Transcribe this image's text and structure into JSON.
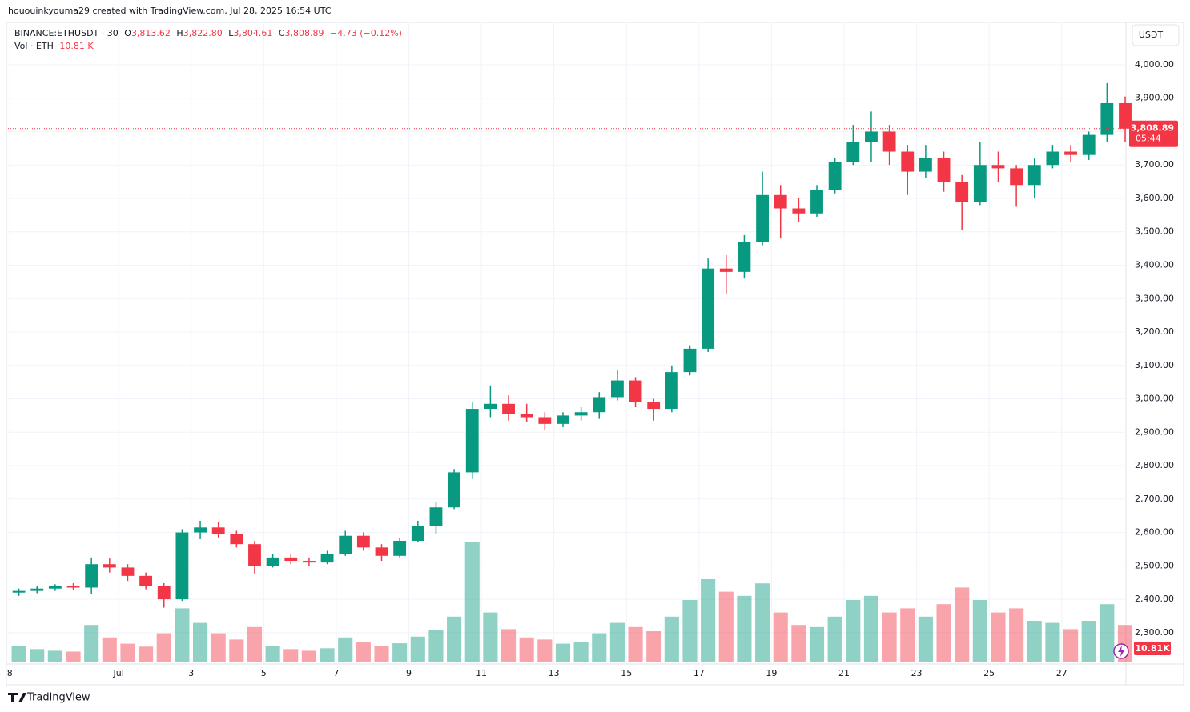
{
  "header": "hououinkyouma29 created with TradingView.com, Jul 28, 2025 16:54 UTC",
  "legend": {
    "symbol": "BINANCE:ETHUSDT · 30",
    "o": "O",
    "open": "3,813.62",
    "h": "H",
    "high": "3,822.80",
    "l": "L",
    "low": "3,804.61",
    "c": "C",
    "close": "3,808.89",
    "change": "−4.73 (−0.12%)",
    "vol_label": "Vol · ETH",
    "vol_value": "10.81 K"
  },
  "currency": "USDT",
  "price_tag": {
    "price": "3,808.89",
    "countdown": "05:44"
  },
  "volume_tag": "10.81K",
  "brand": "TradingView",
  "chart_data": {
    "type": "candlestick",
    "up_color": "#089981",
    "down_color": "#f23645",
    "x": [
      0,
      0.5,
      1,
      1.5,
      2,
      2.5,
      3,
      3.5,
      4,
      4.5,
      5,
      5.5,
      6,
      6.5,
      7,
      7.5,
      8,
      8.5,
      9,
      9.5,
      10,
      10.5,
      11,
      11.5,
      12,
      12.5,
      13,
      13.5,
      14,
      14.5,
      15,
      15.5,
      16,
      16.5,
      17,
      17.5,
      18,
      18.5,
      19,
      19.5,
      20,
      20.5,
      21,
      21.5,
      22,
      22.5,
      23,
      23.5,
      24,
      24.5,
      25,
      25.5,
      26,
      26.5,
      27,
      27.5,
      28,
      28.5,
      29,
      29.5,
      30,
      30.5
    ],
    "open": [
      2420,
      2425,
      2432,
      2440,
      2435,
      2505,
      2495,
      2470,
      2440,
      2400,
      2600,
      2615,
      2595,
      2565,
      2500,
      2525,
      2515,
      2510,
      2535,
      2590,
      2555,
      2530,
      2575,
      2620,
      2675,
      2780,
      2970,
      2985,
      2955,
      2945,
      2925,
      2950,
      2960,
      3005,
      3055,
      2990,
      2970,
      3080,
      3150,
      3390,
      3380,
      3470,
      3610,
      3570,
      3555,
      3625,
      3710,
      3770,
      3800,
      3740,
      3680,
      3720,
      3650,
      3590,
      3700,
      3690,
      3640,
      3700,
      3740,
      3730,
      3790,
      3885
    ],
    "high": [
      2432,
      2440,
      2445,
      2448,
      2525,
      2522,
      2505,
      2480,
      2448,
      2610,
      2635,
      2630,
      2605,
      2575,
      2535,
      2535,
      2525,
      2545,
      2605,
      2600,
      2565,
      2585,
      2635,
      2690,
      2790,
      2990,
      3040,
      3010,
      2985,
      2960,
      2960,
      2975,
      3020,
      3085,
      3065,
      3000,
      3100,
      3160,
      3420,
      3430,
      3490,
      3680,
      3640,
      3600,
      3640,
      3720,
      3820,
      3860,
      3820,
      3760,
      3760,
      3740,
      3670,
      3770,
      3740,
      3700,
      3720,
      3760,
      3760,
      3800,
      3945,
      3905
    ],
    "low": [
      2410,
      2418,
      2425,
      2428,
      2415,
      2480,
      2455,
      2430,
      2375,
      2395,
      2580,
      2585,
      2555,
      2475,
      2495,
      2505,
      2500,
      2505,
      2530,
      2545,
      2515,
      2525,
      2570,
      2595,
      2670,
      2760,
      2945,
      2935,
      2930,
      2905,
      2915,
      2935,
      2940,
      2995,
      2975,
      2935,
      2960,
      3070,
      3140,
      3315,
      3360,
      3460,
      3480,
      3530,
      3545,
      3615,
      3700,
      3710,
      3700,
      3610,
      3660,
      3620,
      3505,
      3580,
      3650,
      3575,
      3600,
      3690,
      3710,
      3715,
      3770,
      3770
    ],
    "close": [
      2425,
      2432,
      2440,
      2435,
      2505,
      2495,
      2470,
      2440,
      2400,
      2600,
      2615,
      2595,
      2565,
      2500,
      2525,
      2515,
      2510,
      2535,
      2590,
      2555,
      2530,
      2575,
      2620,
      2675,
      2780,
      2970,
      2985,
      2955,
      2945,
      2925,
      2950,
      2960,
      3005,
      3055,
      2990,
      2970,
      3080,
      3150,
      3390,
      3380,
      3470,
      3610,
      3570,
      3555,
      3625,
      3710,
      3770,
      3800,
      3740,
      3680,
      3720,
      3650,
      3590,
      3700,
      3690,
      3640,
      3700,
      3740,
      3730,
      3790,
      3885,
      3808.89
    ],
    "volume": [
      40,
      32,
      28,
      26,
      90,
      60,
      45,
      38,
      70,
      130,
      95,
      70,
      55,
      85,
      40,
      32,
      28,
      34,
      60,
      48,
      40,
      46,
      62,
      78,
      110,
      290,
      120,
      80,
      60,
      55,
      45,
      50,
      70,
      95,
      85,
      75,
      110,
      150,
      200,
      170,
      160,
      190,
      120,
      90,
      85,
      110,
      150,
      160,
      120,
      130,
      110,
      140,
      180,
      150,
      120,
      130,
      100,
      95,
      80,
      100,
      140,
      90
    ],
    "xlim": [
      -0.05,
      30.75
    ],
    "xticks": [
      {
        "value": 0,
        "label": "8"
      },
      {
        "value": 3,
        "label": "Jul"
      },
      {
        "value": 5,
        "label": "3"
      },
      {
        "value": 7,
        "label": "5"
      },
      {
        "value": 9,
        "label": "7"
      },
      {
        "value": 11,
        "label": "9"
      },
      {
        "value": 13,
        "label": "11"
      },
      {
        "value": 15,
        "label": "13"
      },
      {
        "value": 17,
        "label": "15"
      },
      {
        "value": 19,
        "label": "17"
      },
      {
        "value": 21,
        "label": "19"
      },
      {
        "value": 23,
        "label": "21"
      },
      {
        "value": 25,
        "label": "23"
      },
      {
        "value": 27,
        "label": "25"
      },
      {
        "value": 29,
        "label": "27"
      }
    ],
    "ylim": [
      2211,
      4122
    ],
    "yticks": [
      {
        "value": 2300,
        "label": "2,300.00"
      },
      {
        "value": 2400,
        "label": "2,400.00"
      },
      {
        "value": 2500,
        "label": "2,500.00"
      },
      {
        "value": 2600,
        "label": "2,600.00"
      },
      {
        "value": 2700,
        "label": "2,700.00"
      },
      {
        "value": 2800,
        "label": "2,800.00"
      },
      {
        "value": 2900,
        "label": "2,900.00"
      },
      {
        "value": 3000,
        "label": "3,000.00"
      },
      {
        "value": 3100,
        "label": "3,100.00"
      },
      {
        "value": 3200,
        "label": "3,200.00"
      },
      {
        "value": 3300,
        "label": "3,300.00"
      },
      {
        "value": 3400,
        "label": "3,400.00"
      },
      {
        "value": 3500,
        "label": "3,500.00"
      },
      {
        "value": 3600,
        "label": "3,600.00"
      },
      {
        "value": 3700,
        "label": "3,700.00"
      },
      {
        "value": 3800,
        "label": "3,800.00"
      },
      {
        "value": 3900,
        "label": "3,900.00"
      },
      {
        "value": 4000,
        "label": "4,000.00"
      }
    ],
    "y2lim": [
      0,
      400
    ],
    "grid": true
  }
}
